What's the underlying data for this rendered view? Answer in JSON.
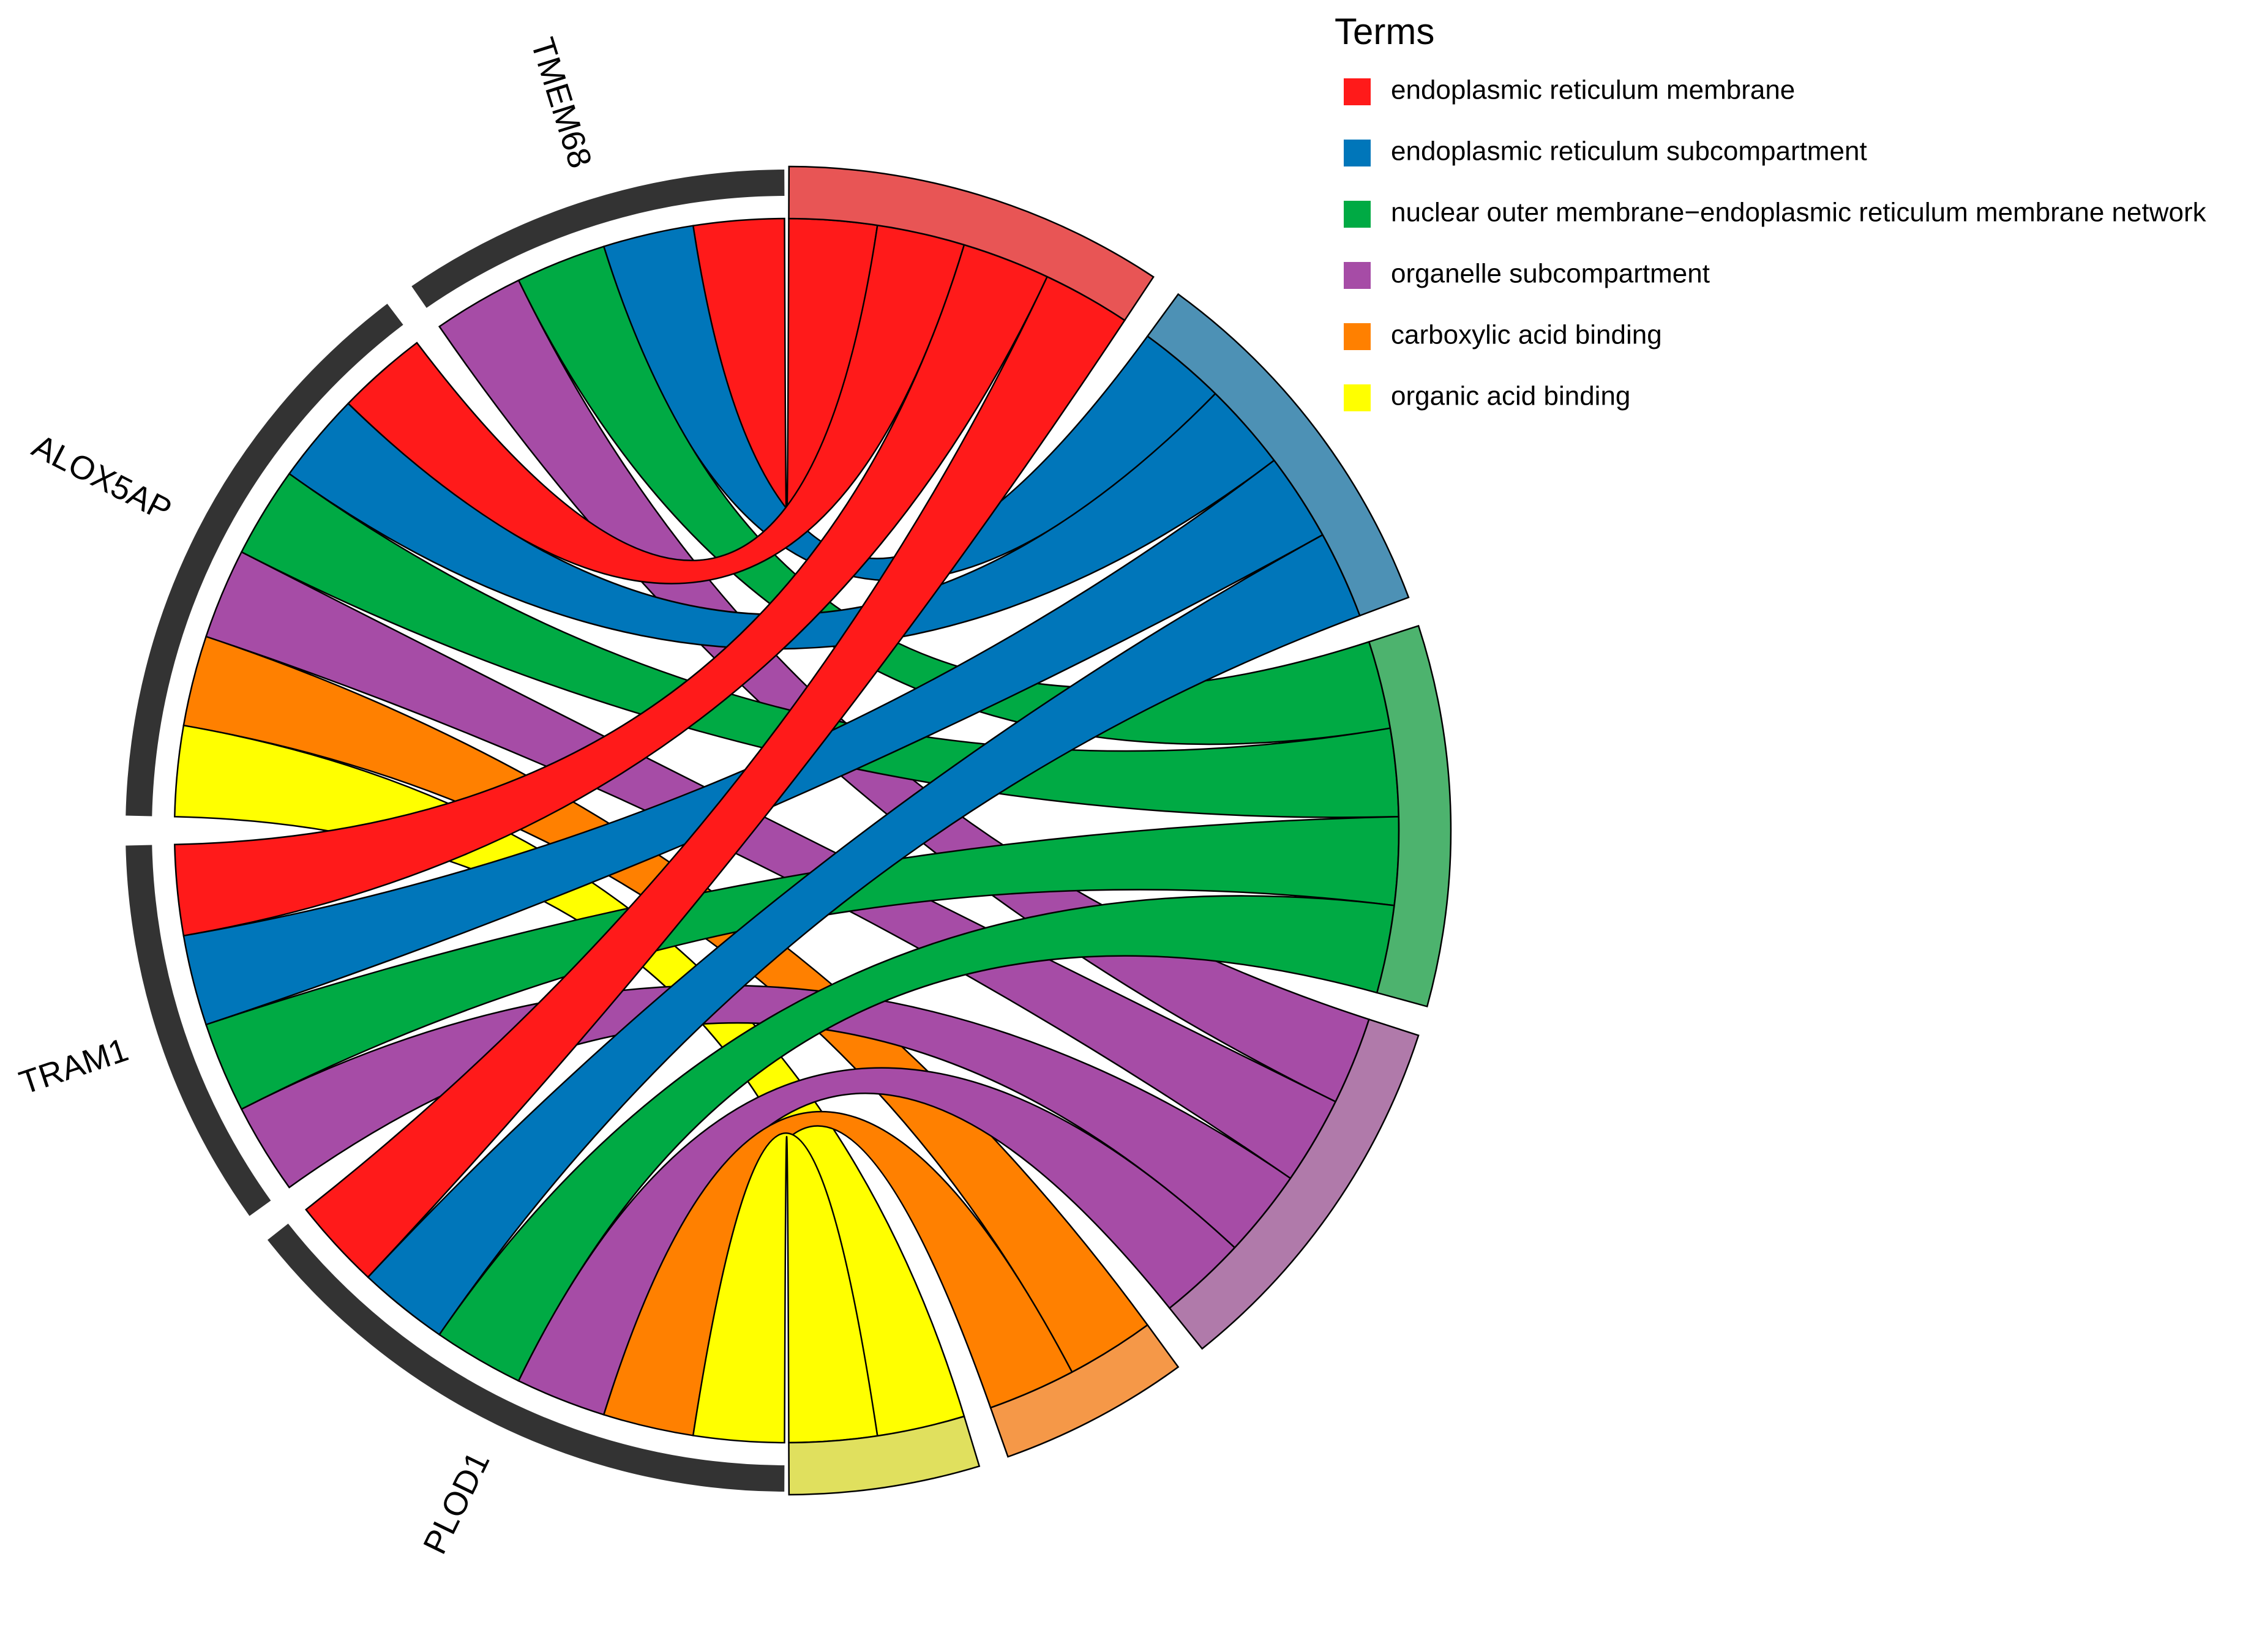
{
  "chart_data": {
    "type": "chord",
    "legend_title": "Terms",
    "genes": [
      "TMEM68",
      "ALOX5AP",
      "TRAM1",
      "PLOD1"
    ],
    "terms": [
      {
        "name": "endoplasmic reticulum membrane",
        "color": "#FF1A1A",
        "sector_color": "#E85555"
      },
      {
        "name": "endoplasmic reticulum subcompartment",
        "color": "#0076BA",
        "sector_color": "#4D91B5"
      },
      {
        "name": "nuclear outer membrane−endoplasmic reticulum membrane network",
        "color": "#00AA44",
        "sector_color": "#4DB36E"
      },
      {
        "name": "organelle subcompartment",
        "color": "#A64CA6",
        "sector_color": "#B07AAA"
      },
      {
        "name": "carboxylic acid binding",
        "color": "#FF8000",
        "sector_color": "#F59848"
      },
      {
        "name": "organic acid binding",
        "color": "#FFFF00",
        "sector_color": "#E0E05E"
      }
    ],
    "links": [
      {
        "gene": "TMEM68",
        "term": "endoplasmic reticulum membrane",
        "value": 1
      },
      {
        "gene": "TMEM68",
        "term": "endoplasmic reticulum subcompartment",
        "value": 1
      },
      {
        "gene": "TMEM68",
        "term": "nuclear outer membrane−endoplasmic reticulum membrane network",
        "value": 1
      },
      {
        "gene": "TMEM68",
        "term": "organelle subcompartment",
        "value": 1
      },
      {
        "gene": "ALOX5AP",
        "term": "endoplasmic reticulum membrane",
        "value": 1
      },
      {
        "gene": "ALOX5AP",
        "term": "endoplasmic reticulum subcompartment",
        "value": 1
      },
      {
        "gene": "ALOX5AP",
        "term": "nuclear outer membrane−endoplasmic reticulum membrane network",
        "value": 1
      },
      {
        "gene": "ALOX5AP",
        "term": "organelle subcompartment",
        "value": 1
      },
      {
        "gene": "ALOX5AP",
        "term": "carboxylic acid binding",
        "value": 1
      },
      {
        "gene": "ALOX5AP",
        "term": "organic acid binding",
        "value": 1
      },
      {
        "gene": "TRAM1",
        "term": "endoplasmic reticulum membrane",
        "value": 1
      },
      {
        "gene": "TRAM1",
        "term": "endoplasmic reticulum subcompartment",
        "value": 1
      },
      {
        "gene": "TRAM1",
        "term": "nuclear outer membrane−endoplasmic reticulum membrane network",
        "value": 1
      },
      {
        "gene": "TRAM1",
        "term": "organelle subcompartment",
        "value": 1
      },
      {
        "gene": "PLOD1",
        "term": "endoplasmic reticulum membrane",
        "value": 1
      },
      {
        "gene": "PLOD1",
        "term": "endoplasmic reticulum subcompartment",
        "value": 1
      },
      {
        "gene": "PLOD1",
        "term": "nuclear outer membrane−endoplasmic reticulum membrane network",
        "value": 1
      },
      {
        "gene": "PLOD1",
        "term": "organelle subcompartment",
        "value": 1
      },
      {
        "gene": "PLOD1",
        "term": "carboxylic acid binding",
        "value": 1
      },
      {
        "gene": "PLOD1",
        "term": "organic acid binding",
        "value": 1
      }
    ],
    "gene_band_color": "#333333",
    "legend_position": "top-right"
  }
}
